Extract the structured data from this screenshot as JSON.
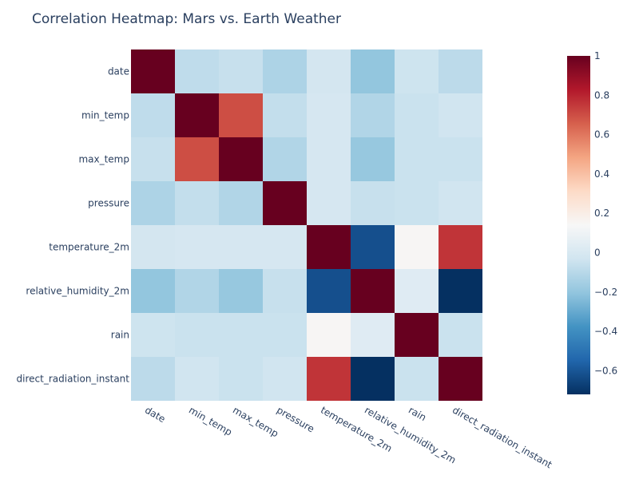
{
  "chart_data": {
    "type": "heatmap",
    "title": "Correlation Heatmap: Mars vs. Earth Weather",
    "xlabel": "",
    "ylabel": "",
    "categories": [
      "date",
      "min_temp",
      "max_temp",
      "pressure",
      "temperature_2m",
      "relative_humidity_2m",
      "rain",
      "direct_radiation_instant"
    ],
    "matrix": [
      [
        1.0,
        -0.08,
        -0.06,
        -0.13,
        -0.02,
        -0.2,
        -0.04,
        -0.09
      ],
      [
        -0.08,
        1.0,
        0.7,
        -0.07,
        -0.01,
        -0.12,
        -0.05,
        -0.03
      ],
      [
        -0.06,
        0.7,
        1.0,
        -0.12,
        -0.01,
        -0.19,
        -0.05,
        -0.05
      ],
      [
        -0.13,
        -0.07,
        -0.12,
        1.0,
        -0.01,
        -0.06,
        -0.05,
        -0.03
      ],
      [
        -0.02,
        -0.01,
        -0.01,
        -0.01,
        1.0,
        -0.62,
        0.15,
        0.76
      ],
      [
        -0.2,
        -0.12,
        -0.19,
        -0.06,
        -0.62,
        1.0,
        0.03,
        -0.72
      ],
      [
        -0.04,
        -0.05,
        -0.05,
        -0.05,
        0.15,
        0.03,
        1.0,
        -0.05
      ],
      [
        -0.09,
        -0.03,
        -0.05,
        -0.03,
        0.76,
        -0.72,
        -0.05,
        1.0
      ]
    ],
    "colorscale": "RdBu",
    "zmin": -0.72,
    "zmax": 1.0,
    "colorbar_ticks": [
      1,
      0.8,
      0.6,
      0.4,
      0.2,
      0,
      -0.2,
      -0.4,
      -0.6
    ],
    "colorbar_tick_labels": [
      "1",
      "0.8",
      "0.6",
      "0.4",
      "0.2",
      "0",
      "−0.2",
      "−0.4",
      "−0.6"
    ],
    "grid": false,
    "legend": "colorbar-right"
  }
}
